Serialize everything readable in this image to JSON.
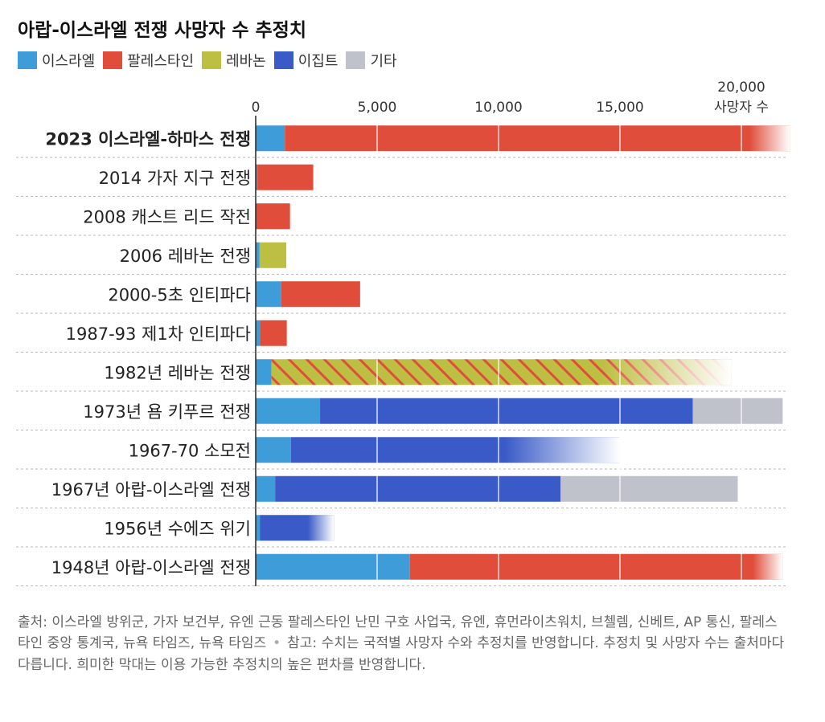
{
  "chart_data": {
    "type": "bar",
    "orientation": "horizontal",
    "stacked": true,
    "title": "아랍-이스라엘 전쟁 사망자 수 추정치",
    "axis": {
      "ticks": [
        0,
        5000,
        10000,
        15000,
        20000
      ],
      "tick_labels": [
        "0",
        "5,000",
        "10,000",
        "15,000",
        "20,000"
      ],
      "unit_label": "사망자 수",
      "xlim": [
        0,
        21500
      ],
      "grid": true,
      "position": "top"
    },
    "legend": [
      {
        "key": "israel",
        "label": "이스라엘",
        "color": "#3e9dd8"
      },
      {
        "key": "palestine",
        "label": "팔레스타인",
        "color": "#e04d3a"
      },
      {
        "key": "lebanon",
        "label": "레바논",
        "color": "#bdbf43"
      },
      {
        "key": "egypt",
        "label": "이집트",
        "color": "#3a5bc7"
      },
      {
        "key": "other",
        "label": "기타",
        "color": "#c0c2cb"
      }
    ],
    "categories": [
      {
        "label": "2023 이스라엘-하마스 전쟁",
        "bold": true,
        "segments": [
          {
            "key": "israel",
            "value": 1200
          },
          {
            "key": "palestine",
            "value": 20800,
            "fade": true
          }
        ]
      },
      {
        "label": "2014 가자 지구 전쟁",
        "segments": [
          {
            "key": "israel",
            "value": 70
          },
          {
            "key": "palestine",
            "value": 2300
          }
        ]
      },
      {
        "label": "2008 캐스트 리드 작전",
        "segments": [
          {
            "key": "israel",
            "value": 13
          },
          {
            "key": "palestine",
            "value": 1400
          }
        ]
      },
      {
        "label": "2006 레바논 전쟁",
        "segments": [
          {
            "key": "israel",
            "value": 160
          },
          {
            "key": "lebanon",
            "value": 1100
          }
        ]
      },
      {
        "label": "2000-5초 인티파다",
        "segments": [
          {
            "key": "israel",
            "value": 1050
          },
          {
            "key": "palestine",
            "value": 3250
          }
        ]
      },
      {
        "label": "1987-93 제1차 인티파다",
        "segments": [
          {
            "key": "israel",
            "value": 180
          },
          {
            "key": "palestine",
            "value": 1100
          }
        ]
      },
      {
        "label": "1982년 레바논 전쟁",
        "segments": [
          {
            "key": "israel",
            "value": 650
          },
          {
            "key": "lebanon_palestine",
            "value": 18950,
            "pattern": true,
            "fade": true
          }
        ]
      },
      {
        "label": "1973년 욤 키푸르 전쟁",
        "segments": [
          {
            "key": "israel",
            "value": 2650
          },
          {
            "key": "egypt",
            "value": 15350
          },
          {
            "key": "other",
            "value": 3700
          }
        ]
      },
      {
        "label": "1967-70 소모전",
        "segments": [
          {
            "key": "israel",
            "value": 1450
          },
          {
            "key": "egypt",
            "value": 13550,
            "fade": true
          }
        ]
      },
      {
        "label": "1967년 아랍-이스라엘 전쟁",
        "segments": [
          {
            "key": "israel",
            "value": 800
          },
          {
            "key": "egypt",
            "value": 11750
          },
          {
            "key": "other",
            "value": 7300
          }
        ]
      },
      {
        "label": "1956년 수에즈 위기",
        "segments": [
          {
            "key": "israel",
            "value": 170
          },
          {
            "key": "egypt",
            "value": 3050,
            "fade": true
          }
        ]
      },
      {
        "label": "1948년 아랍-이스라엘 전쟁",
        "segments": [
          {
            "key": "israel",
            "value": 6350
          },
          {
            "key": "palestine",
            "value": 15350,
            "fade": true
          }
        ]
      }
    ]
  },
  "footer": {
    "source": "출처: 이스라엘 방위군, 가자 보건부, 유엔 근동 팔레스타인 난민 구호 사업국, 유엔, 휴먼라이츠워치, 브첼렘, 신베트, AP 통신, 팔레스타인 중앙 통계국, 뉴욕 타임즈, 뉴욕 타임즈",
    "separator": "•",
    "note": "참고: 수치는 국적별 사망자 수와 추정치를 반영합니다. 추정치 및 사망자 수는 출처마다 다릅니다. 희미한 막대는 이용 가능한 추정치의 높은 편차를 반영합니다."
  }
}
